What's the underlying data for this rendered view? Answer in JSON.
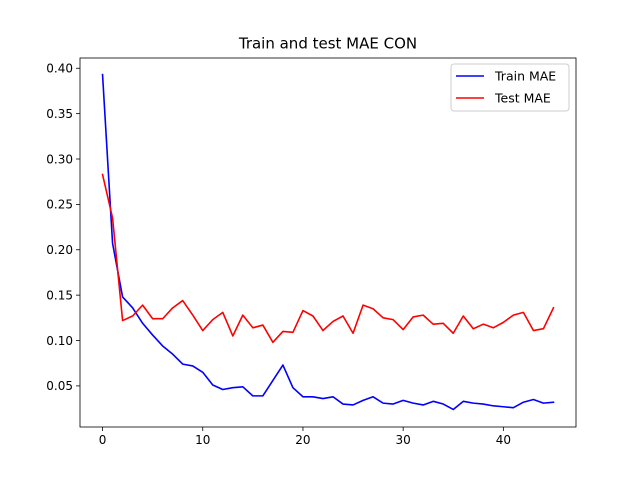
{
  "chart_data": {
    "type": "line",
    "title": "Train and test MAE CON",
    "xlabel": "",
    "ylabel": "",
    "xlim": [
      -2.25,
      47.25
    ],
    "ylim": [
      0.0047,
      0.4113
    ],
    "xticks": [
      0,
      10,
      20,
      30,
      40
    ],
    "yticks": [
      0.05,
      0.1,
      0.15,
      0.2,
      0.25,
      0.3,
      0.35,
      0.4
    ],
    "ytick_labels": [
      "0.05",
      "0.10",
      "0.15",
      "0.20",
      "0.25",
      "0.30",
      "0.35",
      "0.40"
    ],
    "grid": false,
    "legend_position": "top-right",
    "x": [
      0,
      1,
      2,
      3,
      4,
      5,
      6,
      7,
      8,
      9,
      10,
      11,
      12,
      13,
      14,
      15,
      16,
      17,
      18,
      19,
      20,
      21,
      22,
      23,
      24,
      25,
      26,
      27,
      28,
      29,
      30,
      31,
      32,
      33,
      34,
      35,
      36,
      37,
      38,
      39,
      40,
      41,
      42,
      43,
      44,
      45
    ],
    "series": [
      {
        "name": "Train MAE",
        "color": "#0000ff",
        "values": [
          0.393,
          0.207,
          0.148,
          0.136,
          0.119,
          0.106,
          0.094,
          0.085,
          0.074,
          0.072,
          0.065,
          0.051,
          0.046,
          0.048,
          0.049,
          0.039,
          0.039,
          0.056,
          0.073,
          0.048,
          0.038,
          0.038,
          0.036,
          0.038,
          0.03,
          0.029,
          0.034,
          0.038,
          0.031,
          0.03,
          0.034,
          0.031,
          0.029,
          0.033,
          0.03,
          0.024,
          0.033,
          0.031,
          0.03,
          0.028,
          0.027,
          0.026,
          0.032,
          0.035,
          0.031,
          0.032
        ]
      },
      {
        "name": "Test MAE",
        "color": "#ff0000",
        "values": [
          0.283,
          0.235,
          0.122,
          0.127,
          0.139,
          0.124,
          0.124,
          0.136,
          0.144,
          0.128,
          0.111,
          0.123,
          0.131,
          0.105,
          0.128,
          0.114,
          0.117,
          0.098,
          0.11,
          0.109,
          0.133,
          0.127,
          0.111,
          0.121,
          0.127,
          0.108,
          0.139,
          0.135,
          0.125,
          0.123,
          0.112,
          0.126,
          0.128,
          0.118,
          0.119,
          0.108,
          0.127,
          0.113,
          0.118,
          0.114,
          0.12,
          0.128,
          0.131,
          0.111,
          0.113,
          0.136
        ]
      }
    ]
  }
}
